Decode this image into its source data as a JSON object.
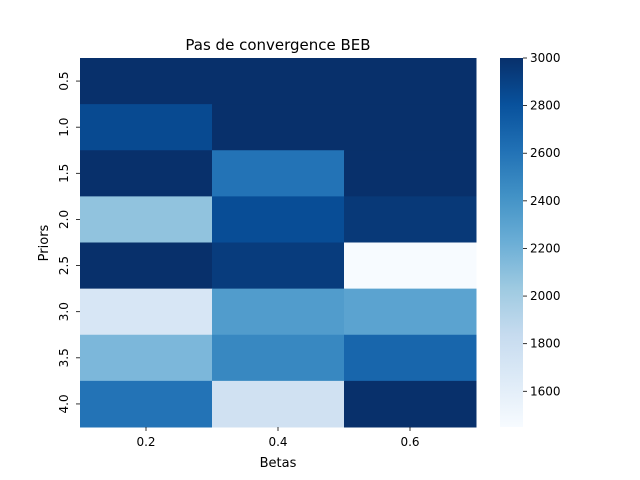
{
  "chart_data": {
    "type": "heatmap",
    "title": "Pas de convergence BEB",
    "xlabel": "Betas",
    "ylabel": "Priors",
    "x_categories": [
      "0.2",
      "0.4",
      "0.6"
    ],
    "y_categories": [
      "0.5",
      "1.0",
      "1.5",
      "2.0",
      "2.5",
      "3.0",
      "3.5",
      "4.0"
    ],
    "values": [
      [
        3000,
        3000,
        3000
      ],
      [
        2850,
        3000,
        3000
      ],
      [
        3000,
        2600,
        3000
      ],
      [
        2080,
        2830,
        2950
      ],
      [
        3000,
        2930,
        1450
      ],
      [
        1700,
        2350,
        2300
      ],
      [
        2160,
        2480,
        2680
      ],
      [
        2600,
        1760,
        3000
      ]
    ],
    "colorbar": {
      "min": 1450,
      "max": 3000,
      "ticks": [
        "1600",
        "1800",
        "2000",
        "2200",
        "2400",
        "2600",
        "2800",
        "3000"
      ],
      "colormap": "Blues"
    },
    "grid": false
  }
}
